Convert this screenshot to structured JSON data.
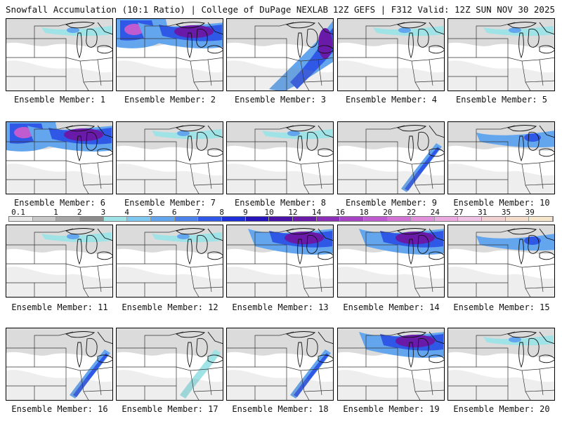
{
  "header": {
    "left": "Snowfall Accumulation (10:1 Ratio) | College of DuPage NEXLAB",
    "right": "12Z GEFS | F312 Valid: 12Z SUN NOV 30 2025"
  },
  "panels": [
    {
      "label": "Ensemble Member: 1",
      "intensity": "light-north"
    },
    {
      "label": "Ensemble Member: 2",
      "intensity": "heavy-northwest"
    },
    {
      "label": "Ensemble Member: 3",
      "intensity": "heavy-band"
    },
    {
      "label": "Ensemble Member: 4",
      "intensity": "light-north"
    },
    {
      "label": "Ensemble Member: 5",
      "intensity": "light-north"
    },
    {
      "label": "Ensemble Member: 6",
      "intensity": "heavy-northwest"
    },
    {
      "label": "Ensemble Member: 7",
      "intensity": "light"
    },
    {
      "label": "Ensemble Member: 8",
      "intensity": "light"
    },
    {
      "label": "Ensemble Member: 9",
      "intensity": "moderate-band"
    },
    {
      "label": "Ensemble Member: 10",
      "intensity": "moderate-north"
    },
    {
      "label": "Ensemble Member: 11",
      "intensity": "light"
    },
    {
      "label": "Ensemble Member: 12",
      "intensity": "light-north"
    },
    {
      "label": "Ensemble Member: 13",
      "intensity": "heavy-northeast"
    },
    {
      "label": "Ensemble Member: 14",
      "intensity": "heavy-north"
    },
    {
      "label": "Ensemble Member: 15",
      "intensity": "moderate-north"
    },
    {
      "label": "Ensemble Member: 16",
      "intensity": "moderate-band"
    },
    {
      "label": "Ensemble Member: 17",
      "intensity": "light-band"
    },
    {
      "label": "Ensemble Member: 18",
      "intensity": "moderate-band"
    },
    {
      "label": "Ensemble Member: 19",
      "intensity": "heavy-north"
    },
    {
      "label": "Ensemble Member: 20",
      "intensity": "light-north"
    }
  ],
  "legend": {
    "ticks": [
      "0.1",
      "1",
      "2",
      "3",
      "4",
      "5",
      "6",
      "7",
      "8",
      "9",
      "10",
      "12",
      "14",
      "16",
      "18",
      "20",
      "22",
      "24",
      "27",
      "31",
      "35",
      "39"
    ],
    "colors": [
      "#e8e8e8",
      "#c8c8c8",
      "#a6a6a6",
      "#8c8c8c",
      "#9fe3e6",
      "#7fc8ef",
      "#63a6ee",
      "#4a82ea",
      "#2f58e6",
      "#1e2fd8",
      "#2714b8",
      "#4a12a6",
      "#6a1aa8",
      "#8a2eb6",
      "#a543c4",
      "#bf5ad0",
      "#d473d6",
      "#e28fdc",
      "#eaaae0",
      "#efc1e2",
      "#f1d0d2",
      "#f3dccb",
      "#f5e6c9"
    ]
  }
}
